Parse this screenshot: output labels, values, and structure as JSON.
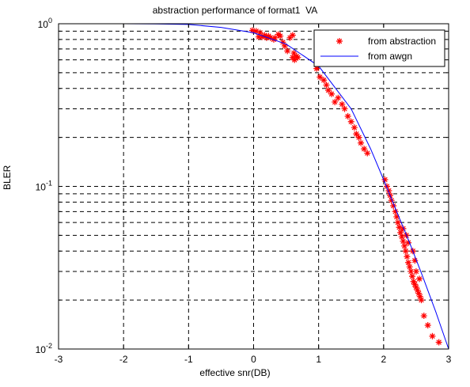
{
  "chart_data": {
    "type": "scatter",
    "title": "abstraction performance of format1  VA",
    "xlabel": "effective snr(DB)",
    "ylabel": "BLER",
    "xlim": [
      -3,
      3
    ],
    "ylim": [
      0.01,
      1
    ],
    "yscale": "log",
    "x_ticks": [
      -3,
      -2,
      -1,
      0,
      1,
      2,
      3
    ],
    "x_tick_labels": [
      "-3",
      "-2",
      "-1",
      "0",
      "1",
      "2",
      "3"
    ],
    "y_tick_labels": [
      {
        "value": 1,
        "base": "10",
        "exp": "0"
      },
      {
        "value": 0.1,
        "base": "10",
        "exp": "-1"
      },
      {
        "value": 0.01,
        "base": "10",
        "exp": "-2"
      }
    ],
    "grid": true,
    "legend_position": "top-right",
    "series": [
      {
        "name": "from abstraction",
        "kind": "markers",
        "marker": "*",
        "color": "#ff0000",
        "points": [
          [
            -0.02,
            0.91
          ],
          [
            0.04,
            0.9
          ],
          [
            0.08,
            0.83
          ],
          [
            0.1,
            0.88
          ],
          [
            0.13,
            0.83
          ],
          [
            0.17,
            0.85
          ],
          [
            0.2,
            0.82
          ],
          [
            0.23,
            0.84
          ],
          [
            0.26,
            0.82
          ],
          [
            0.31,
            0.8
          ],
          [
            0.33,
            0.82
          ],
          [
            0.38,
            0.86
          ],
          [
            0.41,
            0.84
          ],
          [
            0.45,
            0.77
          ],
          [
            0.48,
            0.73
          ],
          [
            0.52,
            0.68
          ],
          [
            0.56,
            0.82
          ],
          [
            0.6,
            0.85
          ],
          [
            0.6,
            0.62
          ],
          [
            0.62,
            0.66
          ],
          [
            0.63,
            0.6
          ],
          [
            0.66,
            0.63
          ],
          [
            0.68,
            0.62
          ],
          [
            0.97,
            0.53
          ],
          [
            1.02,
            0.47
          ],
          [
            1.08,
            0.45
          ],
          [
            1.12,
            0.42
          ],
          [
            1.15,
            0.39
          ],
          [
            1.2,
            0.37
          ],
          [
            1.25,
            0.33
          ],
          [
            1.3,
            0.35
          ],
          [
            1.36,
            0.32
          ],
          [
            1.4,
            0.3
          ],
          [
            1.45,
            0.27
          ],
          [
            1.5,
            0.25
          ],
          [
            1.55,
            0.23
          ],
          [
            1.58,
            0.21
          ],
          [
            1.62,
            0.2
          ],
          [
            1.65,
            0.185
          ],
          [
            1.7,
            0.17
          ],
          [
            1.75,
            0.16
          ],
          [
            2.02,
            0.11
          ],
          [
            2.05,
            0.1
          ],
          [
            2.08,
            0.094
          ],
          [
            2.1,
            0.088
          ],
          [
            2.12,
            0.082
          ],
          [
            2.15,
            0.076
          ],
          [
            2.18,
            0.07
          ],
          [
            2.2,
            0.065
          ],
          [
            2.22,
            0.06
          ],
          [
            2.24,
            0.056
          ],
          [
            2.26,
            0.052
          ],
          [
            2.28,
            0.049
          ],
          [
            2.3,
            0.046
          ],
          [
            2.32,
            0.043
          ],
          [
            2.34,
            0.04
          ],
          [
            2.36,
            0.037
          ],
          [
            2.38,
            0.034
          ],
          [
            2.4,
            0.032
          ],
          [
            2.42,
            0.03
          ],
          [
            2.44,
            0.028
          ],
          [
            2.46,
            0.026
          ],
          [
            2.48,
            0.025
          ],
          [
            2.5,
            0.024
          ],
          [
            2.52,
            0.023
          ],
          [
            2.54,
            0.022
          ],
          [
            2.56,
            0.021
          ],
          [
            2.3,
            0.055
          ],
          [
            2.35,
            0.05
          ],
          [
            2.38,
            0.045
          ],
          [
            2.45,
            0.04
          ],
          [
            2.48,
            0.035
          ],
          [
            2.5,
            0.03
          ],
          [
            2.55,
            0.027
          ],
          [
            2.58,
            0.02
          ],
          [
            2.62,
            0.016
          ],
          [
            2.68,
            0.014
          ],
          [
            2.75,
            0.012
          ],
          [
            2.85,
            0.011
          ]
        ]
      },
      {
        "name": "from awgn",
        "kind": "line",
        "color": "#0000ff",
        "points": [
          [
            -3,
            1
          ],
          [
            -2,
            1
          ],
          [
            -1.5,
            0.998
          ],
          [
            -1,
            0.99
          ],
          [
            -0.5,
            0.95
          ],
          [
            0,
            0.88
          ],
          [
            0.5,
            0.75
          ],
          [
            1,
            0.55
          ],
          [
            1.5,
            0.3
          ],
          [
            1.8,
            0.17
          ],
          [
            2,
            0.11
          ],
          [
            2.2,
            0.07
          ],
          [
            2.4,
            0.045
          ],
          [
            2.6,
            0.028
          ],
          [
            2.8,
            0.017
          ],
          [
            3,
            0.01
          ]
        ]
      }
    ]
  }
}
